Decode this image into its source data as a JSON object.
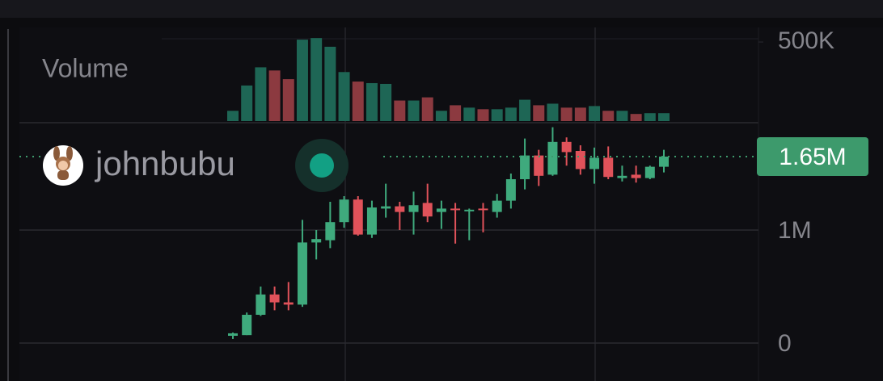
{
  "chart_data": {
    "type": "candlestick",
    "symbol": "johnbubu",
    "volume_title": "Volume",
    "ylim": [
      -336000,
      2786000
    ],
    "yticks": [
      {
        "value": 1000000,
        "label": "1M"
      },
      0
    ],
    "y2lim": [
      0,
      587000
    ],
    "y2ticks": [
      {
        "value": 500000,
        "label": "500K"
      }
    ],
    "up_color": "#3faa7d",
    "down_color": "#e0525a",
    "volume_up_color": "#1e6655",
    "volume_down_color": "#8c3a40",
    "last_price": {
      "value": 1650000,
      "label": "1.65M"
    },
    "last_price_color": "#3d9a6c",
    "open": [
      64000,
      70000,
      250000,
      430000,
      360000,
      340000,
      890000,
      910000,
      1070000,
      1270000,
      960000,
      1190000,
      1210000,
      1160000,
      1240000,
      1160000,
      1190000,
      1170000,
      1190000,
      1160000,
      1260000,
      1450000,
      1660000,
      1490000,
      1780000,
      1700000,
      1540000,
      1640000,
      1460000,
      1490000,
      1460000,
      1560000
    ],
    "high": [
      93000,
      270000,
      500000,
      500000,
      540000,
      1090000,
      1000000,
      1250000,
      1300000,
      1300000,
      1260000,
      1410000,
      1250000,
      1340000,
      1410000,
      1260000,
      1240000,
      1190000,
      1240000,
      1320000,
      1500000,
      1810000,
      1710000,
      1910000,
      1820000,
      1750000,
      1730000,
      1740000,
      1570000,
      1570000,
      1570000,
      1710000
    ],
    "low": [
      36000,
      70000,
      240000,
      290000,
      290000,
      320000,
      740000,
      840000,
      1020000,
      950000,
      930000,
      1110000,
      1000000,
      960000,
      1070000,
      1010000,
      880000,
      910000,
      980000,
      1110000,
      1190000,
      1360000,
      1390000,
      1480000,
      1570000,
      1490000,
      1410000,
      1450000,
      1430000,
      1420000,
      1450000,
      1510000
    ],
    "close": [
      86000,
      250000,
      430000,
      360000,
      340000,
      890000,
      920000,
      1070000,
      1270000,
      960000,
      1200000,
      1210000,
      1160000,
      1220000,
      1120000,
      1190000,
      1180000,
      1180000,
      1180000,
      1260000,
      1450000,
      1660000,
      1480000,
      1780000,
      1690000,
      1540000,
      1640000,
      1470000,
      1480000,
      1460000,
      1560000,
      1650000
    ],
    "volume": [
      65000,
      225000,
      340000,
      320000,
      265000,
      515000,
      525000,
      470000,
      310000,
      250000,
      240000,
      235000,
      130000,
      130000,
      150000,
      65000,
      100000,
      85000,
      75000,
      75000,
      85000,
      135000,
      100000,
      110000,
      85000,
      85000,
      95000,
      65000,
      65000,
      45000,
      50000,
      50000
    ]
  }
}
